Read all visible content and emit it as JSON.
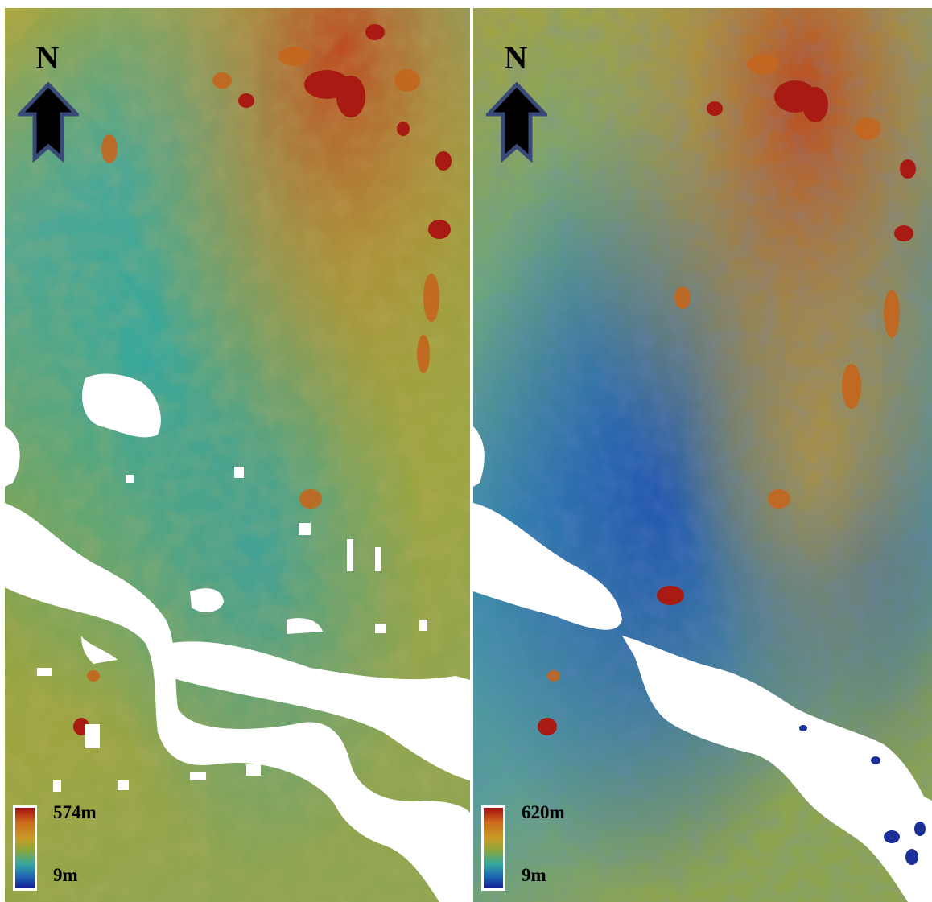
{
  "north_label": "N",
  "panels": [
    {
      "id": "left",
      "legend": {
        "max_label": "574m",
        "min_label": "9m"
      }
    },
    {
      "id": "right",
      "legend": {
        "max_label": "620m",
        "min_label": "9m"
      }
    }
  ],
  "colors": {
    "high": "#a60c10",
    "mid_high": "#cc6a1c",
    "mid": "#c79a25",
    "mid_low": "#33a89f",
    "low": "#141e96",
    "no_data": "#ffffff",
    "arrow_fill": "#000000",
    "arrow_outline": "#3a4a78"
  },
  "icons": {
    "north_arrow": "north-arrow-icon"
  }
}
